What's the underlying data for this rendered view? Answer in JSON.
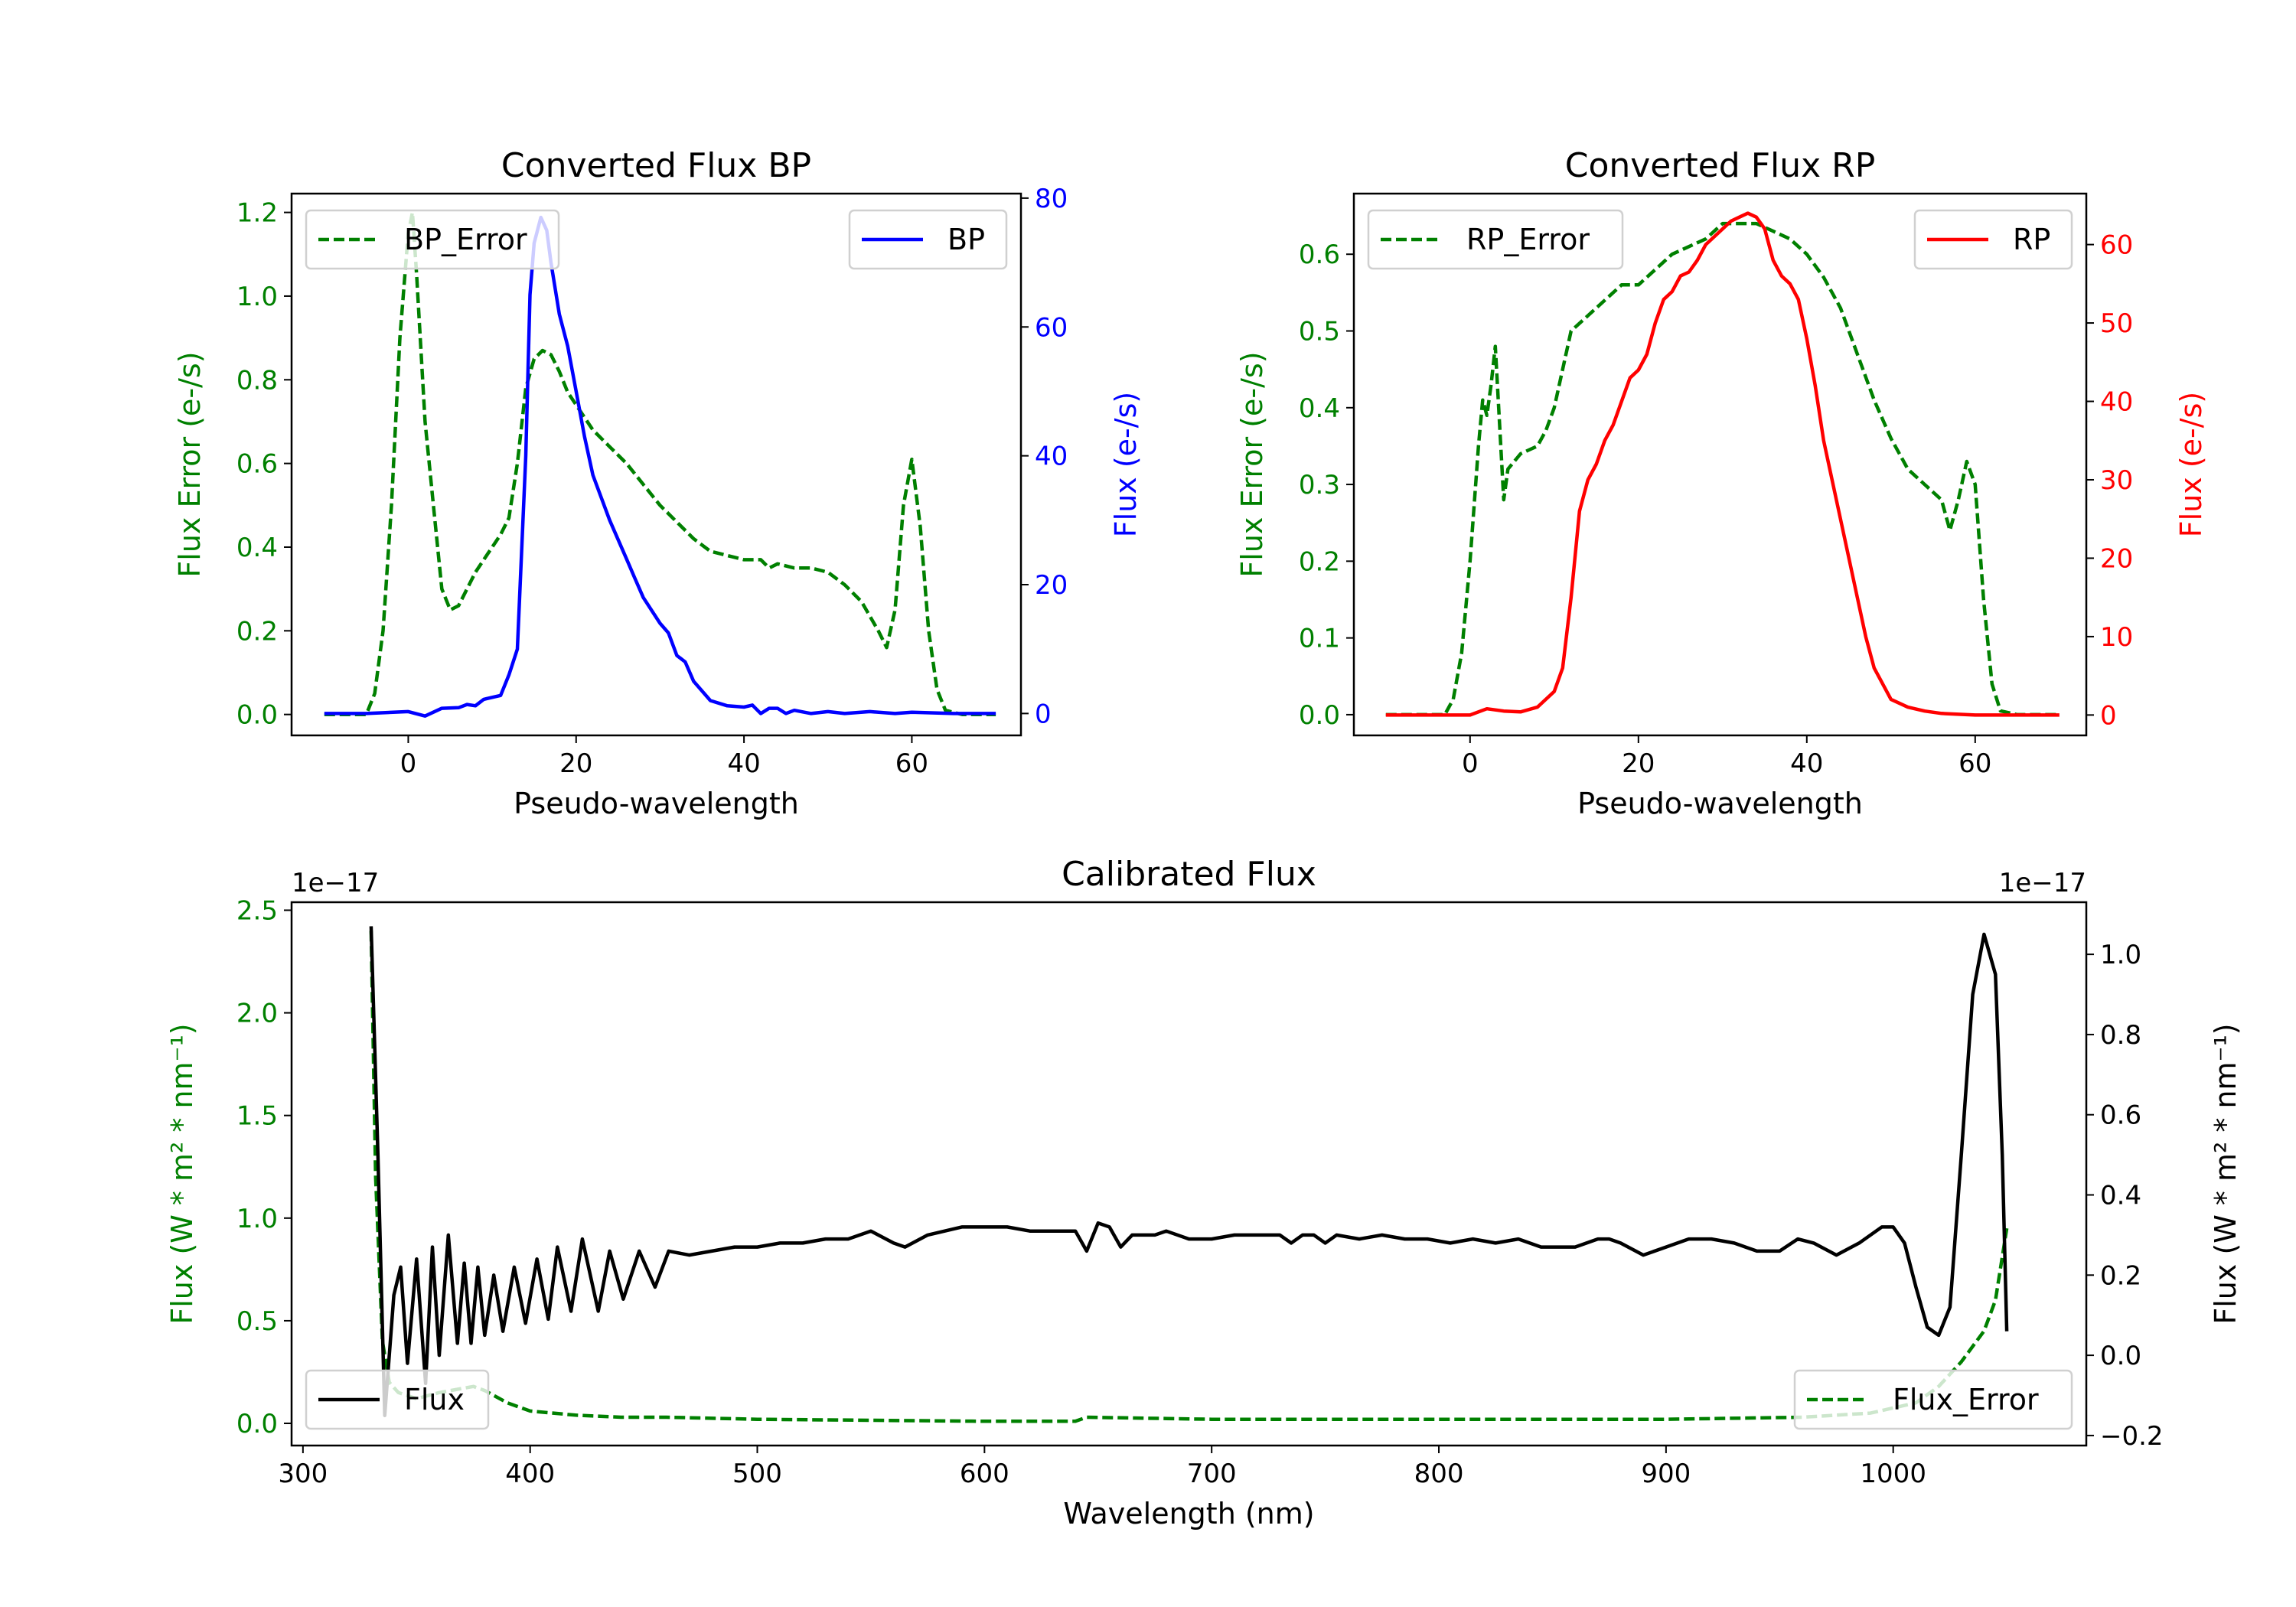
{
  "chart_data": [
    {
      "type": "line",
      "title": "Converted Flux BP",
      "xlabel": "Pseudo-wavelength",
      "ylabel_left": "Flux Error (e-/s)",
      "ylabel_right": "Flux (e-/s)",
      "xlim": [
        -13.9,
        73
      ],
      "ylim_left": [
        -0.05,
        1.245
      ],
      "ylim_right": [
        -3.4,
        80.7
      ],
      "xticks": [
        0,
        20,
        40,
        60
      ],
      "xtick_labels": [
        "0",
        "20",
        "40",
        "60"
      ],
      "yticks_left": [
        0,
        0.2,
        0.4,
        0.6,
        0.8,
        1.0,
        1.2
      ],
      "ytick_labels_left": [
        "0.0",
        "0.2",
        "0.4",
        "0.6",
        "0.8",
        "1.0",
        "1.2"
      ],
      "yticks_right": [
        0,
        20,
        40,
        60,
        80
      ],
      "ytick_labels_right": [
        "0",
        "20",
        "40",
        "60",
        "80"
      ],
      "left_color": "#008000",
      "right_color": "#0000ff",
      "series": [
        {
          "name": "BP_Error",
          "axis": "left",
          "color": "#008000",
          "style": "dashed",
          "legend": "upper left",
          "x": [
            -10,
            -5,
            -4,
            -3,
            -2,
            -1,
            0,
            0.5,
            1,
            2,
            3,
            4,
            5,
            6,
            7,
            8,
            9,
            10,
            11,
            12,
            13,
            14,
            15,
            16,
            17,
            18,
            19,
            20,
            22,
            24,
            26,
            28,
            30,
            32,
            34,
            36,
            38,
            40,
            42,
            43,
            44,
            46,
            48,
            50,
            52,
            54,
            56,
            57,
            58,
            59,
            60,
            61,
            62,
            63,
            64,
            66,
            70
          ],
          "y": [
            0,
            0,
            0.05,
            0.2,
            0.5,
            0.9,
            1.15,
            1.2,
            1.05,
            0.7,
            0.5,
            0.3,
            0.25,
            0.26,
            0.3,
            0.34,
            0.37,
            0.4,
            0.43,
            0.47,
            0.6,
            0.78,
            0.85,
            0.87,
            0.86,
            0.82,
            0.77,
            0.74,
            0.68,
            0.64,
            0.6,
            0.55,
            0.5,
            0.46,
            0.42,
            0.39,
            0.38,
            0.37,
            0.37,
            0.35,
            0.36,
            0.35,
            0.35,
            0.34,
            0.31,
            0.27,
            0.2,
            0.16,
            0.25,
            0.5,
            0.61,
            0.45,
            0.2,
            0.06,
            0.01,
            0,
            0
          ]
        },
        {
          "name": "BP",
          "axis": "right",
          "color": "#0000ff",
          "style": "solid",
          "legend": "upper right",
          "x": [
            -10,
            -5,
            0,
            2,
            4,
            6,
            7,
            8,
            9,
            10,
            11,
            12,
            13,
            14,
            14.5,
            15,
            15.8,
            16.5,
            17,
            18,
            19,
            20,
            21,
            22,
            24,
            26,
            27,
            28,
            30,
            31,
            32,
            33,
            34,
            36,
            38,
            40,
            41,
            42,
            43,
            44,
            45,
            46,
            48,
            50,
            52,
            55,
            58,
            60,
            65,
            70
          ],
          "y": [
            0,
            0,
            0.3,
            -0.4,
            0.8,
            0.9,
            1.4,
            1.2,
            2.2,
            2.5,
            2.8,
            6,
            10,
            40,
            65,
            73,
            77,
            75,
            70,
            62,
            57,
            50,
            43,
            37,
            30,
            24,
            21,
            18,
            14,
            12.5,
            9,
            8,
            5,
            2,
            1.2,
            1,
            1.3,
            0,
            0.8,
            0.8,
            0,
            0.5,
            0,
            0.3,
            0,
            0.3,
            0,
            0.2,
            0,
            0
          ]
        }
      ]
    },
    {
      "type": "line",
      "title": "Converted Flux RP",
      "xlabel": "Pseudo-wavelength",
      "ylabel_left": "Flux Error (e-/s)",
      "ylabel_right": "Flux (e-/s)",
      "xlim": [
        -13.8,
        73.2
      ],
      "ylim_left": [
        -0.027,
        0.679
      ],
      "ylim_right": [
        -2.6,
        66.5
      ],
      "xticks": [
        0,
        20,
        40,
        60
      ],
      "xtick_labels": [
        "0",
        "20",
        "40",
        "60"
      ],
      "yticks_left": [
        0,
        0.1,
        0.2,
        0.3,
        0.4,
        0.5,
        0.6
      ],
      "ytick_labels_left": [
        "0.0",
        "0.1",
        "0.2",
        "0.3",
        "0.4",
        "0.5",
        "0.6"
      ],
      "yticks_right": [
        0,
        10,
        20,
        30,
        40,
        50,
        60
      ],
      "ytick_labels_right": [
        "0",
        "10",
        "20",
        "30",
        "40",
        "50",
        "60"
      ],
      "left_color": "#008000",
      "right_color": "#ff0000",
      "series": [
        {
          "name": "RP_Error",
          "axis": "left",
          "color": "#008000",
          "style": "dashed",
          "legend": "upper left",
          "x": [
            -10,
            -3,
            -2,
            -1,
            0,
            1,
            1.5,
            2,
            2.5,
            3,
            3.5,
            4,
            4.5,
            6,
            8,
            9,
            10,
            11,
            12,
            14,
            16,
            18,
            20,
            22,
            24,
            26,
            28,
            30,
            32,
            34,
            36,
            38,
            40,
            42,
            44,
            46,
            48,
            50,
            52,
            54,
            56,
            57,
            58,
            59,
            60,
            61,
            62,
            63,
            65,
            70
          ],
          "y": [
            0,
            0,
            0.02,
            0.08,
            0.2,
            0.35,
            0.41,
            0.39,
            0.43,
            0.48,
            0.38,
            0.28,
            0.32,
            0.34,
            0.35,
            0.37,
            0.4,
            0.45,
            0.5,
            0.52,
            0.54,
            0.56,
            0.56,
            0.58,
            0.6,
            0.61,
            0.62,
            0.64,
            0.64,
            0.64,
            0.63,
            0.62,
            0.6,
            0.57,
            0.53,
            0.47,
            0.41,
            0.36,
            0.32,
            0.3,
            0.28,
            0.24,
            0.28,
            0.33,
            0.3,
            0.15,
            0.04,
            0.005,
            0,
            0
          ]
        },
        {
          "name": "RP",
          "axis": "right",
          "color": "#ff0000",
          "style": "solid",
          "legend": "upper right",
          "x": [
            -10,
            -2,
            0,
            2,
            4,
            6,
            8,
            10,
            11,
            12,
            13,
            14,
            15,
            16,
            17,
            18,
            19,
            20,
            21,
            22,
            23,
            24,
            25,
            26,
            27,
            28,
            29,
            30,
            31,
            32,
            33,
            34,
            35,
            36,
            37,
            38,
            39,
            40,
            41,
            42,
            43,
            44,
            45,
            46,
            47,
            48,
            49,
            50,
            52,
            54,
            56,
            60,
            70
          ],
          "y": [
            0,
            0,
            0,
            0.8,
            0.5,
            0.4,
            1,
            3,
            6,
            15,
            26,
            30,
            32,
            35,
            37,
            40,
            43,
            44,
            46,
            50,
            53,
            54,
            56,
            56.5,
            58,
            60,
            61,
            62,
            63,
            63.5,
            64,
            63.5,
            62,
            58,
            56,
            55,
            53,
            48,
            42,
            35,
            30,
            25,
            20,
            15,
            10,
            6,
            4,
            2,
            1,
            0.5,
            0.2,
            0,
            0
          ]
        }
      ]
    },
    {
      "type": "line",
      "title": "Calibrated Flux",
      "xlabel": "Wavelength (nm)",
      "ylabel_left": "Flux (W * m² * nm⁻¹)",
      "ylabel_right": "Flux (W * m² * nm⁻¹)",
      "offset_left": "1e−17",
      "offset_right": "1e−17",
      "xlim": [
        295,
        1085
      ],
      "ylim_left": [
        -0.108,
        2.539
      ],
      "ylim_right": [
        -0.225,
        1.13
      ],
      "xticks": [
        300,
        400,
        500,
        600,
        700,
        800,
        900,
        1000
      ],
      "xtick_labels": [
        "300",
        "400",
        "500",
        "600",
        "700",
        "800",
        "900",
        "1000"
      ],
      "yticks_left": [
        0,
        0.5,
        1.0,
        1.5,
        2.0,
        2.5
      ],
      "ytick_labels_left": [
        "0.0",
        "0.5",
        "1.0",
        "1.5",
        "2.0",
        "2.5"
      ],
      "yticks_right": [
        -0.2,
        0,
        0.2,
        0.4,
        0.6,
        0.8,
        1.0
      ],
      "ytick_labels_right": [
        "−0.2",
        "0.0",
        "0.2",
        "0.4",
        "0.6",
        "0.8",
        "1.0"
      ],
      "left_color": "#008000",
      "right_color": "#000000",
      "series": [
        {
          "name": "Flux_Error",
          "axis": "left",
          "color": "#008000",
          "style": "dashed",
          "legend": "lower right",
          "x": [
            330,
            332,
            335,
            338,
            342,
            350,
            360,
            375,
            380,
            390,
            400,
            420,
            440,
            460,
            500,
            600,
            640,
            645,
            700,
            800,
            900,
            960,
            990,
            1010,
            1020,
            1030,
            1040,
            1045,
            1050
          ],
          "y": [
            2.4,
            1.2,
            0.4,
            0.2,
            0.15,
            0.12,
            0.15,
            0.18,
            0.16,
            0.1,
            0.06,
            0.04,
            0.03,
            0.03,
            0.02,
            0.01,
            0.01,
            0.03,
            0.02,
            0.02,
            0.02,
            0.03,
            0.05,
            0.1,
            0.18,
            0.3,
            0.45,
            0.6,
            0.95
          ]
        },
        {
          "name": "Flux",
          "axis": "right",
          "color": "#000000",
          "style": "solid",
          "legend": "lower left",
          "x": [
            330,
            333,
            336,
            340,
            343,
            346,
            350,
            354,
            357,
            360,
            364,
            368,
            371,
            374,
            377,
            380,
            384,
            388,
            393,
            398,
            403,
            408,
            412,
            418,
            423,
            430,
            435,
            441,
            448,
            455,
            461,
            470,
            480,
            490,
            500,
            510,
            520,
            530,
            540,
            550,
            560,
            565,
            575,
            590,
            600,
            610,
            620,
            635,
            640,
            645,
            650,
            655,
            660,
            665,
            670,
            675,
            680,
            690,
            700,
            710,
            720,
            730,
            735,
            740,
            745,
            750,
            755,
            765,
            775,
            785,
            795,
            805,
            815,
            825,
            835,
            845,
            860,
            870,
            875,
            880,
            890,
            900,
            910,
            920,
            930,
            940,
            950,
            958,
            965,
            975,
            985,
            995,
            1000,
            1005,
            1010,
            1015,
            1020,
            1025,
            1030,
            1035,
            1040,
            1045,
            1048,
            1050
          ],
          "y": [
            1.07,
            0.5,
            -0.15,
            0.15,
            0.22,
            -0.02,
            0.24,
            -0.07,
            0.27,
            0.0,
            0.3,
            0.03,
            0.23,
            0.03,
            0.22,
            0.05,
            0.2,
            0.06,
            0.22,
            0.08,
            0.24,
            0.09,
            0.27,
            0.11,
            0.29,
            0.11,
            0.26,
            0.14,
            0.26,
            0.17,
            0.26,
            0.25,
            0.26,
            0.27,
            0.27,
            0.28,
            0.28,
            0.29,
            0.29,
            0.31,
            0.28,
            0.27,
            0.3,
            0.32,
            0.32,
            0.32,
            0.31,
            0.31,
            0.31,
            0.26,
            0.33,
            0.32,
            0.27,
            0.3,
            0.3,
            0.3,
            0.31,
            0.29,
            0.29,
            0.3,
            0.3,
            0.3,
            0.28,
            0.3,
            0.3,
            0.28,
            0.3,
            0.29,
            0.3,
            0.29,
            0.29,
            0.28,
            0.29,
            0.28,
            0.29,
            0.27,
            0.27,
            0.29,
            0.29,
            0.28,
            0.25,
            0.27,
            0.29,
            0.29,
            0.28,
            0.26,
            0.26,
            0.29,
            0.28,
            0.25,
            0.28,
            0.32,
            0.32,
            0.28,
            0.17,
            0.07,
            0.05,
            0.12,
            0.5,
            0.9,
            1.05,
            0.95,
            0.5,
            0.06
          ]
        }
      ]
    }
  ]
}
